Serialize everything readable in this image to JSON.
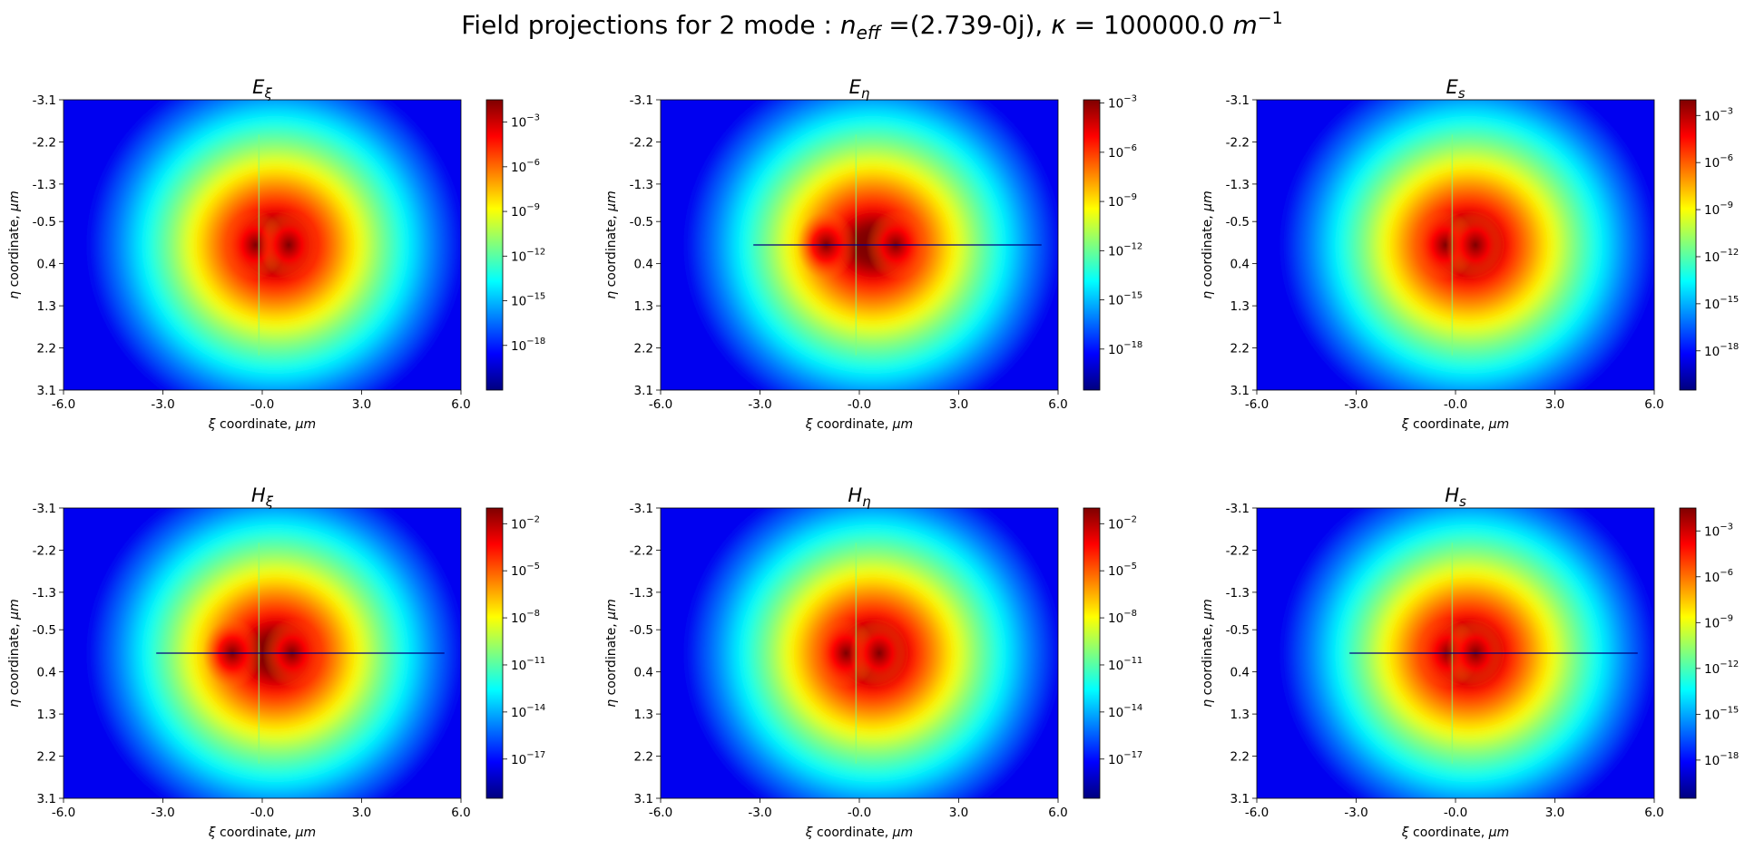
{
  "chart_data": {
    "type": "heatmap",
    "title_prefix": "Field projections for 2 mode : ",
    "title_neff_symbol": "n",
    "title_neff_sub": "eff",
    "title_neff_value": " =(2.739-0j), ",
    "title_kappa_symbol": "κ",
    "title_kappa_value": " = 100000.0 ",
    "title_unit": "m",
    "title_unit_exp": "−1",
    "colormap": "jet",
    "colors": {
      "background": "#0000f0",
      "jet": [
        "#00007f",
        "#0000ff",
        "#007fff",
        "#00ffff",
        "#7fff7f",
        "#ffff00",
        "#ff7f00",
        "#ff0000",
        "#7f0000"
      ]
    },
    "xlabel": {
      "symbol": "ξ",
      "text": " coordinate, ",
      "unit": "μm"
    },
    "ylabel": {
      "symbol": "η",
      "text": " coordinate, ",
      "unit": "μm"
    },
    "xlim": [
      -6.0,
      6.0
    ],
    "ylim": [
      -3.1,
      3.1
    ],
    "y_inverted": true,
    "x_ticks": [
      "-6.0",
      "-3.0",
      "-0.0",
      "3.0",
      "6.0"
    ],
    "y_ticks": [
      "-3.1",
      "-2.2",
      "-1.3",
      "-0.5",
      "0.4",
      "1.3",
      "2.2",
      "3.1"
    ],
    "panels": [
      {
        "id": "E_xi",
        "title_main": "E",
        "title_sub": "ξ",
        "log_min": -21,
        "log_max": -1.5,
        "colorbar_ticks": [
          {
            "base": "10",
            "exp": "−3"
          },
          {
            "base": "10",
            "exp": "−6"
          },
          {
            "base": "10",
            "exp": "−9"
          },
          {
            "base": "10",
            "exp": "−12"
          },
          {
            "base": "10",
            "exp": "−15"
          },
          {
            "base": "10",
            "exp": "−18"
          }
        ],
        "colorbar_tick_values": [
          -3,
          -6,
          -9,
          -12,
          -15,
          -18
        ],
        "lobes": [
          -0.2,
          0.8
        ],
        "streak": false
      },
      {
        "id": "E_eta",
        "title_main": "E",
        "title_sub": "η",
        "log_min": -20.5,
        "log_max": -2.8,
        "colorbar_ticks": [
          {
            "base": "10",
            "exp": "−3"
          },
          {
            "base": "10",
            "exp": "−6"
          },
          {
            "base": "10",
            "exp": "−9"
          },
          {
            "base": "10",
            "exp": "−12"
          },
          {
            "base": "10",
            "exp": "−15"
          },
          {
            "base": "10",
            "exp": "−18"
          }
        ],
        "colorbar_tick_values": [
          -3,
          -6,
          -9,
          -12,
          -15,
          -18
        ],
        "lobes": [
          -1.0,
          1.1
        ],
        "streak": true
      },
      {
        "id": "E_s",
        "title_main": "E",
        "title_sub": "s",
        "log_min": -20.5,
        "log_max": -2.0,
        "colorbar_ticks": [
          {
            "base": "10",
            "exp": "−3"
          },
          {
            "base": "10",
            "exp": "−6"
          },
          {
            "base": "10",
            "exp": "−9"
          },
          {
            "base": "10",
            "exp": "−12"
          },
          {
            "base": "10",
            "exp": "−15"
          },
          {
            "base": "10",
            "exp": "−18"
          }
        ],
        "colorbar_tick_values": [
          -3,
          -6,
          -9,
          -12,
          -15,
          -18
        ],
        "lobes": [
          -0.3,
          0.6
        ],
        "streak": false
      },
      {
        "id": "H_xi",
        "title_main": "H",
        "title_sub": "ξ",
        "log_min": -19.5,
        "log_max": -1.0,
        "colorbar_ticks": [
          {
            "base": "10",
            "exp": "−2"
          },
          {
            "base": "10",
            "exp": "−5"
          },
          {
            "base": "10",
            "exp": "−8"
          },
          {
            "base": "10",
            "exp": "−11"
          },
          {
            "base": "10",
            "exp": "−14"
          },
          {
            "base": "10",
            "exp": "−17"
          }
        ],
        "colorbar_tick_values": [
          -2,
          -5,
          -8,
          -11,
          -14,
          -17
        ],
        "lobes": [
          -0.9,
          0.9
        ],
        "streak": true
      },
      {
        "id": "H_eta",
        "title_main": "H",
        "title_sub": "η",
        "log_min": -19.5,
        "log_max": -1.0,
        "colorbar_ticks": [
          {
            "base": "10",
            "exp": "−2"
          },
          {
            "base": "10",
            "exp": "−5"
          },
          {
            "base": "10",
            "exp": "−8"
          },
          {
            "base": "10",
            "exp": "−11"
          },
          {
            "base": "10",
            "exp": "−14"
          },
          {
            "base": "10",
            "exp": "−17"
          }
        ],
        "colorbar_tick_values": [
          -2,
          -5,
          -8,
          -11,
          -14,
          -17
        ],
        "lobes": [
          -0.4,
          0.6
        ],
        "streak": false
      },
      {
        "id": "H_s",
        "title_main": "H",
        "title_sub": "s",
        "log_min": -20.5,
        "log_max": -1.5,
        "colorbar_ticks": [
          {
            "base": "10",
            "exp": "−3"
          },
          {
            "base": "10",
            "exp": "−6"
          },
          {
            "base": "10",
            "exp": "−9"
          },
          {
            "base": "10",
            "exp": "−12"
          },
          {
            "base": "10",
            "exp": "−15"
          },
          {
            "base": "10",
            "exp": "−18"
          }
        ],
        "colorbar_tick_values": [
          -3,
          -6,
          -9,
          -12,
          -15,
          -18
        ],
        "lobes": [
          -0.2,
          0.6
        ],
        "streak": true
      }
    ]
  }
}
